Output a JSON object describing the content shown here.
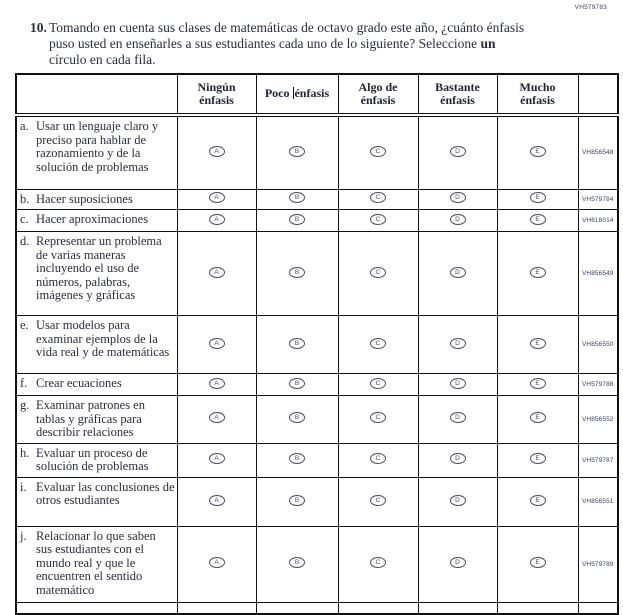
{
  "page": {
    "corner_code": "VH579783",
    "question_number": "10.",
    "question_text_main": "Tomando en cuenta sus clases de matemáticas de octavo grado este año, ¿cuánto énfasis puso usted en enseñarles a sus estudiantes cada uno de lo siguiente? Seleccione ",
    "question_text_bold": "un",
    "question_text_end": " círculo en cada fila."
  },
  "table": {
    "columns": [
      {
        "label": "Ningún énfasis",
        "lines": [
          "Ningún",
          "énfasis"
        ],
        "bubble_letter": "A",
        "caret": false
      },
      {
        "label": "Poco énfasis",
        "lines": [
          "Poco énfasis"
        ],
        "caret": true,
        "caret_pre": "Poco ",
        "caret_post": "énfasis",
        "bubble_letter": "B"
      },
      {
        "label": "Algo de énfasis",
        "lines": [
          "Algo de",
          "énfasis"
        ],
        "bubble_letter": "C",
        "caret": false
      },
      {
        "label": "Bastante énfasis",
        "lines": [
          "Bastante",
          "énfasis"
        ],
        "bubble_letter": "D",
        "caret": false
      },
      {
        "label": "Mucho énfasis",
        "lines": [
          "Mucho",
          "énfasis"
        ],
        "bubble_letter": "E",
        "caret": false
      }
    ],
    "rows": [
      {
        "letter": "a.",
        "text": "Usar un lenguaje claro y preciso para hablar de razonamiento y de la solución de problemas",
        "code": "VH856548"
      },
      {
        "letter": "b.",
        "text": "Hacer suposiciones",
        "code": "VH579784"
      },
      {
        "letter": "c.",
        "text": "Hacer aproximaciones",
        "code": "VH618014"
      },
      {
        "letter": "d.",
        "text": "Representar un problema de varias maneras incluyendo el uso de números, palabras, imágenes y gráficas",
        "code": "VH856549"
      },
      {
        "letter": "e.",
        "text": "Usar modelos para examinar ejemplos de la vida real y de matemáticas",
        "code": "VH856550"
      },
      {
        "letter": "f.",
        "text": "Crear ecuaciones",
        "code": "VH579788"
      },
      {
        "letter": "g.",
        "text": "Examinar patrones en tablas y gráficas para describir relaciones",
        "code": "VH856552"
      },
      {
        "letter": "h.",
        "text": "Evaluar un proceso de solución de problemas",
        "code": "VH579787"
      },
      {
        "letter": "i.",
        "text": "Evaluar las conclusiones de otros estudiantes",
        "code": "VH856551"
      },
      {
        "letter": "j.",
        "text": "Relacionar lo que saben sus estudiantes con el mundo real y que le encuentren el sentido matemático",
        "code": "VH579789"
      }
    ]
  }
}
